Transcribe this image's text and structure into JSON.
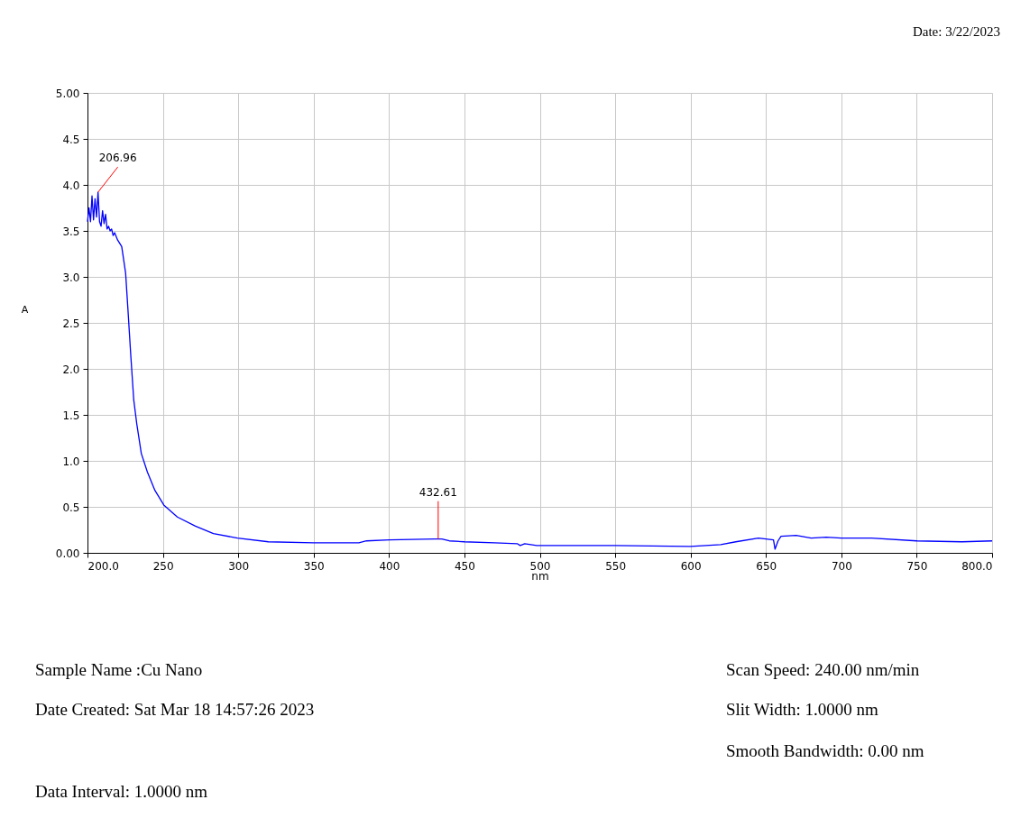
{
  "chart_data": {
    "type": "line",
    "xlabel": "nm",
    "ylabel": "A",
    "xlim": [
      200,
      800
    ],
    "ylim": [
      0,
      5
    ],
    "xticks": [
      {
        "value": 200,
        "label": "200.0"
      },
      250,
      300,
      350,
      400,
      450,
      500,
      550,
      600,
      650,
      700,
      750,
      {
        "value": 800,
        "label": "800.0"
      }
    ],
    "yticks": [
      {
        "value": 0,
        "label": "0.00"
      },
      {
        "value": 0.5,
        "label": "0.5"
      },
      {
        "value": 1,
        "label": "1.0"
      },
      {
        "value": 1.5,
        "label": "1.5"
      },
      {
        "value": 2,
        "label": "2.0"
      },
      {
        "value": 2.5,
        "label": "2.5"
      },
      {
        "value": 3,
        "label": "3.0"
      },
      {
        "value": 3.5,
        "label": "3.5"
      },
      {
        "value": 4,
        "label": "4.0"
      },
      {
        "value": 4.5,
        "label": "4.5"
      },
      {
        "value": 5,
        "label": "5.00"
      }
    ],
    "grid": true,
    "marker": "none",
    "line_style": "solid",
    "series": [
      {
        "color": "#0000ff",
        "x": [
          200,
          201,
          202,
          203,
          204,
          205,
          206,
          207,
          208,
          209,
          210,
          211,
          212,
          213,
          214,
          215,
          216,
          217,
          218,
          220,
          222.7,
          225.3,
          226.7,
          228.7,
          230.7,
          232.7,
          235.7,
          239.7,
          244.7,
          250.6,
          259.6,
          271.6,
          283.5,
          299.5,
          320,
          350,
          380,
          385,
          400,
          430,
          435,
          440,
          450,
          470,
          485,
          487,
          490,
          498,
          550,
          600,
          610,
          620,
          630,
          645,
          650,
          655,
          656,
          658,
          660,
          670,
          680,
          690,
          700,
          720,
          750,
          780,
          800
        ],
        "values": [
          3.6,
          3.75,
          3.6,
          3.88,
          3.62,
          3.85,
          3.65,
          3.92,
          3.6,
          3.55,
          3.72,
          3.58,
          3.68,
          3.52,
          3.55,
          3.5,
          3.52,
          3.45,
          3.48,
          3.4,
          3.33,
          3.04,
          2.68,
          2.15,
          1.66,
          1.4,
          1.08,
          0.88,
          0.68,
          0.52,
          0.39,
          0.29,
          0.21,
          0.16,
          0.12,
          0.11,
          0.11,
          0.13,
          0.14,
          0.15,
          0.15,
          0.13,
          0.12,
          0.11,
          0.1,
          0.08,
          0.1,
          0.08,
          0.08,
          0.07,
          0.08,
          0.09,
          0.12,
          0.16,
          0.15,
          0.14,
          0.04,
          0.13,
          0.18,
          0.19,
          0.16,
          0.17,
          0.16,
          0.16,
          0.13,
          0.12,
          0.13
        ]
      }
    ],
    "annotations": [
      {
        "text": "206.96",
        "x": 206.96,
        "y": 3.92
      },
      {
        "text": "432.61",
        "x": 432.61,
        "y": 0.15
      },
      "Date: 3/22/2023",
      "Sample Name :Cu Nano",
      "Date Created: Sat Mar 18 14:57:26 2023",
      "Data Interval: 1.0000 nm",
      "Scan Speed: 240.00 nm/min",
      "Slit Width: 1.0000 nm",
      "Smooth Bandwidth: 0.00 nm"
    ]
  }
}
